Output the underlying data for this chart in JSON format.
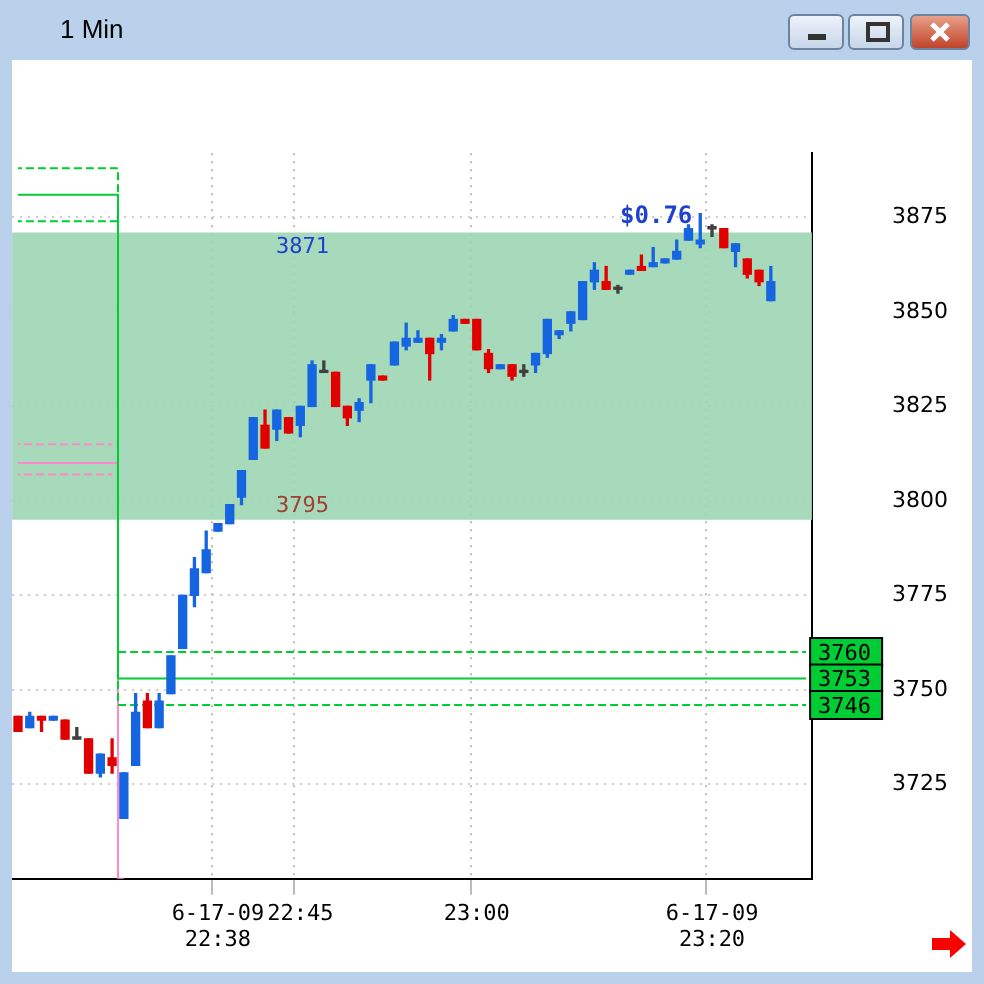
{
  "chart_data": {
    "type": "candlestick",
    "title": "1 Min",
    "categories": [
      null,
      null,
      null,
      null,
      null,
      null,
      null,
      null,
      null,
      null,
      null,
      null,
      null,
      null,
      null,
      null,
      null,
      "6-17-09 22:38",
      null,
      null,
      null,
      null,
      null,
      null,
      "22:45",
      null,
      null,
      null,
      null,
      null,
      null,
      null,
      null,
      null,
      null,
      null,
      null,
      null,
      null,
      "23:00",
      null,
      null,
      null,
      null,
      null,
      null,
      null,
      null,
      null,
      null,
      null,
      null,
      null,
      null,
      null,
      null,
      null,
      null,
      null,
      "6-17-09 23:20",
      null,
      null,
      null,
      null,
      null,
      null,
      null,
      null
    ],
    "ohlc": [
      [
        3743,
        3743,
        3739,
        3739
      ],
      [
        3740,
        3744,
        3740,
        3743
      ],
      [
        3743,
        3743,
        3739,
        3742
      ],
      [
        3742,
        3743,
        3742,
        3743
      ],
      [
        3742,
        3742,
        3737,
        3737
      ],
      [
        3737,
        3740,
        3737,
        3737
      ],
      [
        3737,
        3737,
        3728,
        3728
      ],
      [
        3728,
        3733,
        3727,
        3733
      ],
      [
        3732,
        3737,
        3728,
        3730
      ],
      [
        3716,
        3728,
        3716,
        3728
      ],
      [
        3730,
        3749,
        3730,
        3744
      ],
      [
        3747,
        3749,
        3740,
        3740
      ],
      [
        3740,
        3749,
        3740,
        3747
      ],
      [
        3749,
        3759,
        3749,
        3759
      ],
      [
        3761,
        3775,
        3761,
        3775
      ],
      [
        3775,
        3785,
        3772,
        3782
      ],
      [
        3781,
        3792,
        3781,
        3787
      ],
      [
        3792,
        3794,
        3792,
        3794
      ],
      [
        3794,
        3799,
        3794,
        3799
      ],
      [
        3801,
        3808,
        3799,
        3808
      ],
      [
        3811,
        3822,
        3811,
        3822
      ],
      [
        3820,
        3824,
        3814,
        3814
      ],
      [
        3819,
        3824,
        3816,
        3824
      ],
      [
        3822,
        3822,
        3818,
        3818
      ],
      [
        3820,
        3825,
        3817,
        3825
      ],
      [
        3825,
        3837,
        3825,
        3836
      ],
      [
        3834,
        3837,
        3834,
        3834
      ],
      [
        3834,
        3834,
        3825,
        3825
      ],
      [
        3825,
        3825,
        3820,
        3822
      ],
      [
        3824,
        3827,
        3821,
        3826
      ],
      [
        3832,
        3836,
        3826,
        3836
      ],
      [
        3833,
        3833,
        3832,
        3832
      ],
      [
        3836,
        3842,
        3836,
        3842
      ],
      [
        3841,
        3847,
        3840,
        3843
      ],
      [
        3842,
        3845,
        3842,
        3843
      ],
      [
        3843,
        3843,
        3832,
        3839
      ],
      [
        3842,
        3844,
        3840,
        3843
      ],
      [
        3845,
        3849,
        3845,
        3848
      ],
      [
        3848,
        3848,
        3847,
        3847
      ],
      [
        3848,
        3848,
        3840,
        3840
      ],
      [
        3839,
        3840,
        3834,
        3835
      ],
      [
        3835,
        3836,
        3835,
        3836
      ],
      [
        3836,
        3836,
        3832,
        3833
      ],
      [
        3834,
        3836,
        3833,
        3834
      ],
      [
        3836,
        3839,
        3834,
        3839
      ],
      [
        3839,
        3848,
        3838,
        3848
      ],
      [
        3844,
        3845,
        3843,
        3845
      ],
      [
        3847,
        3850,
        3845,
        3850
      ],
      [
        3848,
        3858,
        3848,
        3858
      ],
      [
        3858,
        3863,
        3856,
        3861
      ],
      [
        3858,
        3862,
        3856,
        3856
      ],
      [
        3856,
        3857,
        3855,
        3856
      ],
      [
        3860,
        3861,
        3860,
        3861
      ],
      [
        3862,
        3865,
        3861,
        3861
      ],
      [
        3862,
        3867,
        3862,
        3863
      ],
      [
        3863,
        3864,
        3863,
        3864
      ],
      [
        3864,
        3869,
        3864,
        3866
      ],
      [
        3869,
        3873,
        3869,
        3872
      ],
      [
        3868,
        3876,
        3867,
        3869
      ],
      [
        3872,
        3873,
        3870,
        3872
      ],
      [
        3872,
        3872,
        3867,
        3867
      ],
      [
        3866,
        3868,
        3862,
        3868
      ],
      [
        3864,
        3864,
        3859,
        3860
      ],
      [
        3861,
        3861,
        3857,
        3858
      ],
      [
        3853,
        3862,
        3853,
        3858
      ],
      null,
      null,
      null
    ],
    "colors": [
      "#e00000",
      "#1565e0",
      "#e00000",
      "#1565e0",
      "#e00000",
      "#404040",
      "#e00000",
      "#1565e0",
      "#e00000",
      "#1565e0",
      "#1565e0",
      "#e00000",
      "#1565e0",
      "#1565e0",
      "#1565e0",
      "#1565e0",
      "#1565e0",
      "#1565e0",
      "#1565e0",
      "#1565e0",
      "#1565e0",
      "#e00000",
      "#1565e0",
      "#e00000",
      "#1565e0",
      "#1565e0",
      "#404040",
      "#e00000",
      "#e00000",
      "#1565e0",
      "#1565e0",
      "#e00000",
      "#1565e0",
      "#1565e0",
      "#1565e0",
      "#e00000",
      "#1565e0",
      "#1565e0",
      "#e00000",
      "#e00000",
      "#e00000",
      "#1565e0",
      "#e00000",
      "#404040",
      "#1565e0",
      "#1565e0",
      "#1565e0",
      "#1565e0",
      "#1565e0",
      "#1565e0",
      "#e00000",
      "#404040",
      "#1565e0",
      "#e00000",
      "#1565e0",
      "#1565e0",
      "#1565e0",
      "#1565e0",
      "#1565e0",
      "#404040",
      "#e00000",
      "#1565e0",
      "#e00000",
      "#e00000",
      "#1565e0",
      null,
      null,
      null
    ],
    "series": [
      {
        "type": "step",
        "color": "#00cc33",
        "line_style": "dashed",
        "values": [
          3888,
          3888,
          3888,
          3888,
          3888,
          3888,
          3888,
          3888,
          3888,
          3760,
          3760,
          3760,
          3760,
          3760,
          3760,
          3760,
          3760,
          3760,
          3760,
          3760,
          3760,
          3760,
          3760,
          3760,
          3760,
          3760,
          3760,
          3760,
          3760,
          3760,
          3760,
          3760,
          3760,
          3760,
          3760,
          3760,
          3760,
          3760,
          3760,
          3760,
          3760,
          3760,
          3760,
          3760,
          3760,
          3760,
          3760,
          3760,
          3760,
          3760,
          3760,
          3760,
          3760,
          3760,
          3760,
          3760,
          3760,
          3760,
          3760,
          3760,
          3760,
          3760,
          3760,
          3760,
          3760,
          3760,
          3760,
          3760
        ],
        "value_labels": [
          null,
          null,
          null,
          null,
          null,
          null,
          null,
          null,
          null,
          null,
          null,
          null,
          null,
          null,
          null,
          null,
          null,
          null,
          null,
          null,
          null,
          null,
          null,
          null,
          null,
          null,
          null,
          null,
          null,
          null,
          null,
          null,
          null,
          null,
          null,
          null,
          null,
          null,
          null,
          null,
          null,
          null,
          null,
          null,
          null,
          null,
          null,
          null,
          null,
          null,
          null,
          null,
          null,
          null,
          null,
          null,
          null,
          null,
          null,
          null,
          null,
          null,
          null,
          null,
          null,
          null,
          null,
          "3760"
        ]
      },
      {
        "type": "step",
        "color": "#00cc33",
        "line_style": "solid",
        "values": [
          3881,
          3881,
          3881,
          3881,
          3881,
          3881,
          3881,
          3881,
          3881,
          3753,
          3753,
          3753,
          3753,
          3753,
          3753,
          3753,
          3753,
          3753,
          3753,
          3753,
          3753,
          3753,
          3753,
          3753,
          3753,
          3753,
          3753,
          3753,
          3753,
          3753,
          3753,
          3753,
          3753,
          3753,
          3753,
          3753,
          3753,
          3753,
          3753,
          3753,
          3753,
          3753,
          3753,
          3753,
          3753,
          3753,
          3753,
          3753,
          3753,
          3753,
          3753,
          3753,
          3753,
          3753,
          3753,
          3753,
          3753,
          3753,
          3753,
          3753,
          3753,
          3753,
          3753,
          3753,
          3753,
          3753,
          3753,
          3753
        ],
        "value_labels": [
          null,
          null,
          null,
          null,
          null,
          null,
          null,
          null,
          null,
          null,
          null,
          null,
          null,
          null,
          null,
          null,
          null,
          null,
          null,
          null,
          null,
          null,
          null,
          null,
          null,
          null,
          null,
          null,
          null,
          null,
          null,
          null,
          null,
          null,
          null,
          null,
          null,
          null,
          null,
          null,
          null,
          null,
          null,
          null,
          null,
          null,
          null,
          null,
          null,
          null,
          null,
          null,
          null,
          null,
          null,
          null,
          null,
          null,
          null,
          null,
          null,
          null,
          null,
          null,
          null,
          null,
          null,
          "3753"
        ]
      },
      {
        "type": "step",
        "color": "#00cc33",
        "line_style": "dashed",
        "values": [
          3874,
          3874,
          3874,
          3874,
          3874,
          3874,
          3874,
          3874,
          3874,
          3746,
          3746,
          3746,
          3746,
          3746,
          3746,
          3746,
          3746,
          3746,
          3746,
          3746,
          3746,
          3746,
          3746,
          3746,
          3746,
          3746,
          3746,
          3746,
          3746,
          3746,
          3746,
          3746,
          3746,
          3746,
          3746,
          3746,
          3746,
          3746,
          3746,
          3746,
          3746,
          3746,
          3746,
          3746,
          3746,
          3746,
          3746,
          3746,
          3746,
          3746,
          3746,
          3746,
          3746,
          3746,
          3746,
          3746,
          3746,
          3746,
          3746,
          3746,
          3746,
          3746,
          3746,
          3746,
          3746,
          3746,
          3746,
          3746
        ],
        "value_labels": [
          null,
          null,
          null,
          null,
          null,
          null,
          null,
          null,
          null,
          null,
          null,
          null,
          null,
          null,
          null,
          null,
          null,
          null,
          null,
          null,
          null,
          null,
          null,
          null,
          null,
          null,
          null,
          null,
          null,
          null,
          null,
          null,
          null,
          null,
          null,
          null,
          null,
          null,
          null,
          null,
          null,
          null,
          null,
          null,
          null,
          null,
          null,
          null,
          null,
          null,
          null,
          null,
          null,
          null,
          null,
          null,
          null,
          null,
          null,
          null,
          null,
          null,
          null,
          null,
          null,
          null,
          null,
          "3746"
        ]
      },
      {
        "type": "step",
        "color": "#ff88cc",
        "line_style": "dashed",
        "values": [
          3815,
          3815,
          3815,
          3815,
          3815,
          3815,
          3815,
          3815,
          3815,
          null,
          null,
          null,
          null,
          null,
          null,
          null,
          null,
          null,
          null,
          null,
          null,
          null,
          null,
          null,
          null,
          null,
          null,
          null,
          null,
          null,
          null,
          null,
          null,
          null,
          null,
          null,
          null,
          null,
          null,
          null,
          null,
          null,
          null,
          null,
          null,
          null,
          null,
          null,
          null,
          null,
          null,
          null,
          null,
          null,
          null,
          null,
          null,
          null,
          null,
          null,
          null,
          null,
          null,
          null,
          null,
          null,
          null,
          null
        ]
      },
      {
        "type": "step",
        "color": "#ff88cc",
        "line_style": "solid",
        "values": [
          3810,
          3810,
          3810,
          3810,
          3810,
          3810,
          3810,
          3810,
          3810,
          3700,
          null,
          null,
          null,
          null,
          null,
          null,
          null,
          null,
          null,
          null,
          null,
          null,
          null,
          null,
          null,
          null,
          null,
          null,
          null,
          null,
          null,
          null,
          null,
          null,
          null,
          null,
          null,
          null,
          null,
          null,
          null,
          null,
          null,
          null,
          null,
          null,
          null,
          null,
          null,
          null,
          null,
          null,
          null,
          null,
          null,
          null,
          null,
          null,
          null,
          null,
          null,
          null,
          null,
          null,
          null,
          null,
          null,
          null
        ]
      },
      {
        "type": "step",
        "color": "#ff88cc",
        "line_style": "dashed",
        "values": [
          3807,
          3807,
          3807,
          3807,
          3807,
          3807,
          3807,
          3807,
          3807,
          null,
          null,
          null,
          null,
          null,
          null,
          null,
          null,
          null,
          null,
          null,
          null,
          null,
          null,
          null,
          null,
          null,
          null,
          null,
          null,
          null,
          null,
          null,
          null,
          null,
          null,
          null,
          null,
          null,
          null,
          null,
          null,
          null,
          null,
          null,
          null,
          null,
          null,
          null,
          null,
          null,
          null,
          null,
          null,
          null,
          null,
          null,
          null,
          null,
          null,
          null,
          null,
          null,
          null,
          null,
          null,
          null,
          null,
          null
        ]
      }
    ],
    "ylim": [
      3700,
      3892
    ],
    "yticks": [
      3725,
      3750,
      3775,
      3800,
      3825,
      3850,
      3875
    ],
    "bands": [
      {
        "axis": "y",
        "from": 3795,
        "to": 3871,
        "color": "#9dd6b4"
      }
    ],
    "annotations": [
      {
        "text": "3871",
        "y": 3871
      },
      {
        "text": "3795",
        "y": 3795
      },
      {
        "text": "$0.76",
        "y": 3871
      }
    ],
    "grid": true,
    "legend": false
  }
}
